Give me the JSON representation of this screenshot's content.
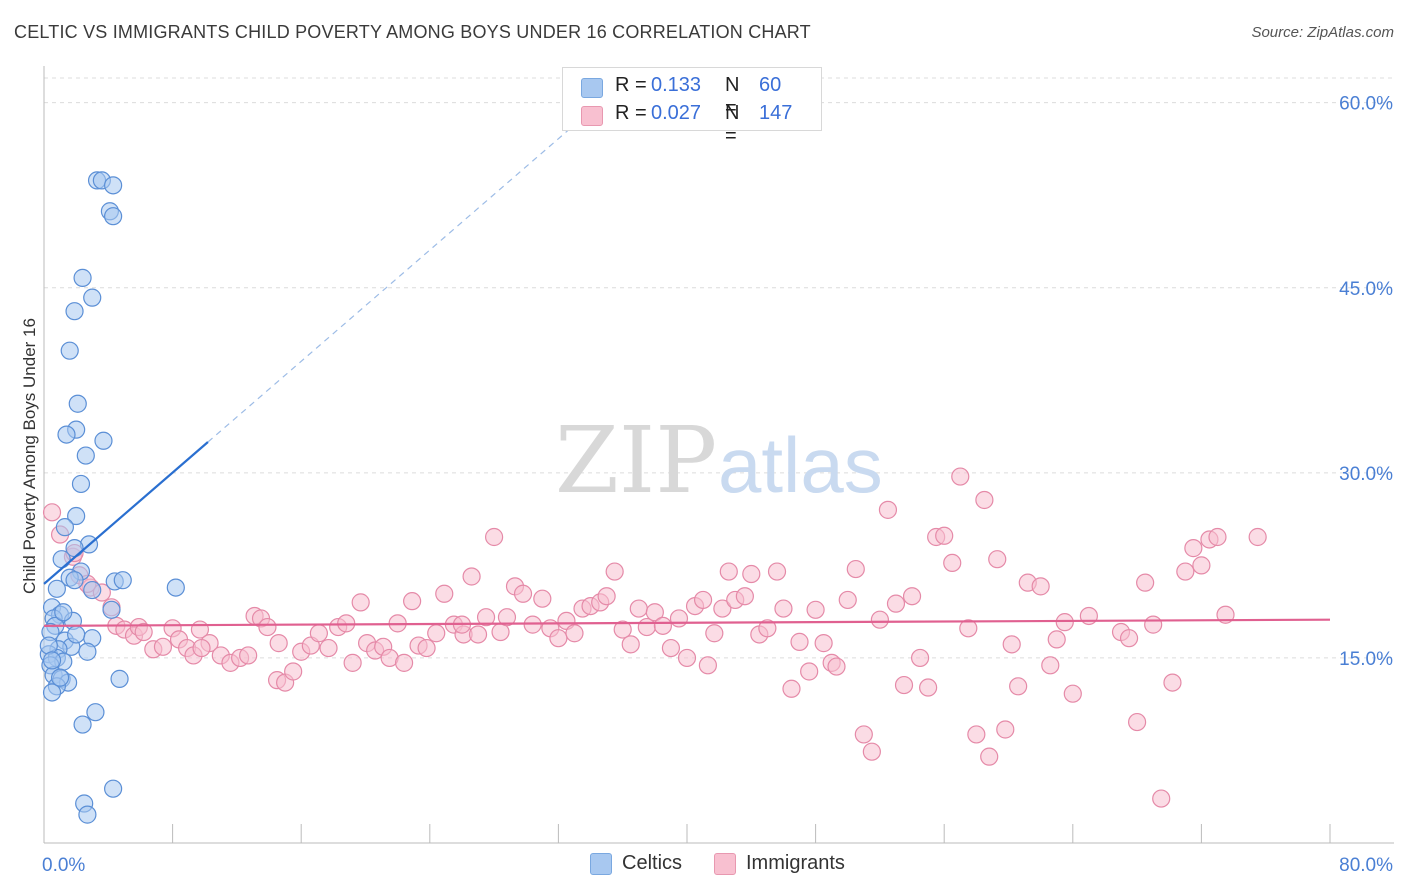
{
  "title": "CELTIC VS IMMIGRANTS CHILD POVERTY AMONG BOYS UNDER 16 CORRELATION CHART",
  "source": "Source: ZipAtlas.com",
  "watermark": {
    "zip": "ZIP",
    "atlas": "atlas"
  },
  "legend": {
    "rows": [
      {
        "r_label": "R =",
        "r_value": "0.133",
        "n_label": "N =",
        "n_value": "60",
        "color": "#a8c8f0",
        "border": "#7aa8e0"
      },
      {
        "r_label": "R =",
        "r_value": "0.027",
        "n_label": "N =",
        "n_value": "147",
        "color": "#f8c0d0",
        "border": "#e898b0"
      }
    ]
  },
  "bottom_legend": {
    "celtics": "Celtics",
    "immigrants": "Immigrants"
  },
  "chart_data": {
    "type": "scatter",
    "title": "CELTIC VS IMMIGRANTS CHILD POVERTY AMONG BOYS UNDER 16 CORRELATION CHART",
    "xlabel": "",
    "ylabel": "Child Poverty Among Boys Under 16",
    "xlim": [
      0,
      80
    ],
    "ylim": [
      0,
      62
    ],
    "x_tick_labels": [
      "0.0%",
      "80.0%"
    ],
    "y_ticks": [
      15,
      30,
      45,
      60
    ],
    "y_tick_labels": [
      "15.0%",
      "30.0%",
      "45.0%",
      "60.0%"
    ],
    "grid": true,
    "colors": {
      "celtics_fill": "#a8c8f0",
      "celtics_stroke": "#5b8fd6",
      "celtics_line": "#2a6fd0",
      "immigrants_fill": "#f8c0d0",
      "immigrants_stroke": "#e58aa8",
      "immigrants_line": "#e06090",
      "tick_label": "#4a7fd4"
    },
    "series": [
      {
        "name": "Celtics",
        "trend": {
          "x": [
            0,
            10.2
          ],
          "y": [
            21.0,
            32.5
          ],
          "dashed_to": [
            32.5,
            60.0
          ]
        },
        "points": [
          [
            3.3,
            53.7
          ],
          [
            3.6,
            53.7
          ],
          [
            4.3,
            53.3
          ],
          [
            4.1,
            51.2
          ],
          [
            4.3,
            50.8
          ],
          [
            2.4,
            45.8
          ],
          [
            3.0,
            44.2
          ],
          [
            1.9,
            43.1
          ],
          [
            1.6,
            39.9
          ],
          [
            2.1,
            35.6
          ],
          [
            2.0,
            33.5
          ],
          [
            1.4,
            33.1
          ],
          [
            3.7,
            32.6
          ],
          [
            2.6,
            31.4
          ],
          [
            2.3,
            29.1
          ],
          [
            2.0,
            26.5
          ],
          [
            1.3,
            25.6
          ],
          [
            2.8,
            24.2
          ],
          [
            1.9,
            23.9
          ],
          [
            1.1,
            23.0
          ],
          [
            2.3,
            22.0
          ],
          [
            1.6,
            21.5
          ],
          [
            1.9,
            21.3
          ],
          [
            4.4,
            21.2
          ],
          [
            4.9,
            21.3
          ],
          [
            0.8,
            20.6
          ],
          [
            3.0,
            20.5
          ],
          [
            8.2,
            20.7
          ],
          [
            0.5,
            19.1
          ],
          [
            4.2,
            18.9
          ],
          [
            1.0,
            18.5
          ],
          [
            0.6,
            18.2
          ],
          [
            1.8,
            18.0
          ],
          [
            0.7,
            17.6
          ],
          [
            0.4,
            17.1
          ],
          [
            3.0,
            16.6
          ],
          [
            1.3,
            16.4
          ],
          [
            1.7,
            15.9
          ],
          [
            0.9,
            15.7
          ],
          [
            2.7,
            15.5
          ],
          [
            0.3,
            15.3
          ],
          [
            0.8,
            15.0
          ],
          [
            1.2,
            14.7
          ],
          [
            0.4,
            14.4
          ],
          [
            0.6,
            13.6
          ],
          [
            1.1,
            13.3
          ],
          [
            1.5,
            13.0
          ],
          [
            4.7,
            13.3
          ],
          [
            0.8,
            12.7
          ],
          [
            0.5,
            12.2
          ],
          [
            3.2,
            10.6
          ],
          [
            2.4,
            9.6
          ],
          [
            4.3,
            4.4
          ],
          [
            2.5,
            3.2
          ],
          [
            2.7,
            2.3
          ],
          [
            1.0,
            13.4
          ],
          [
            0.3,
            16.0
          ],
          [
            0.5,
            14.8
          ],
          [
            1.2,
            18.7
          ],
          [
            2.0,
            16.9
          ]
        ]
      },
      {
        "name": "Immigrants",
        "trend": {
          "x": [
            0,
            80
          ],
          "y": [
            17.6,
            18.1
          ]
        },
        "points": [
          [
            0.5,
            26.8
          ],
          [
            1.0,
            25.0
          ],
          [
            1.8,
            23.2
          ],
          [
            2.2,
            21.7
          ],
          [
            2.9,
            20.7
          ],
          [
            3.6,
            20.3
          ],
          [
            4.2,
            19.1
          ],
          [
            1.9,
            23.5
          ],
          [
            2.7,
            21.0
          ],
          [
            4.5,
            17.6
          ],
          [
            5.0,
            17.3
          ],
          [
            5.6,
            16.8
          ],
          [
            5.9,
            17.5
          ],
          [
            6.2,
            17.1
          ],
          [
            6.8,
            15.7
          ],
          [
            7.4,
            15.9
          ],
          [
            8.0,
            17.4
          ],
          [
            8.4,
            16.5
          ],
          [
            8.9,
            15.8
          ],
          [
            9.3,
            15.2
          ],
          [
            9.7,
            17.3
          ],
          [
            10.3,
            16.2
          ],
          [
            11.0,
            15.2
          ],
          [
            11.6,
            14.6
          ],
          [
            12.2,
            15.0
          ],
          [
            12.7,
            15.2
          ],
          [
            13.1,
            18.4
          ],
          [
            13.5,
            18.2
          ],
          [
            13.9,
            17.5
          ],
          [
            14.5,
            13.2
          ],
          [
            15.0,
            13.0
          ],
          [
            15.5,
            13.9
          ],
          [
            16.0,
            15.5
          ],
          [
            16.6,
            16.0
          ],
          [
            17.1,
            17.0
          ],
          [
            17.7,
            15.8
          ],
          [
            18.3,
            17.5
          ],
          [
            18.8,
            17.8
          ],
          [
            19.2,
            14.6
          ],
          [
            19.7,
            19.5
          ],
          [
            20.1,
            16.2
          ],
          [
            20.6,
            15.6
          ],
          [
            21.1,
            15.9
          ],
          [
            21.5,
            15.0
          ],
          [
            22.0,
            17.8
          ],
          [
            22.4,
            14.6
          ],
          [
            22.9,
            19.6
          ],
          [
            23.3,
            16.0
          ],
          [
            23.8,
            15.8
          ],
          [
            24.4,
            17.0
          ],
          [
            24.9,
            20.2
          ],
          [
            25.5,
            17.7
          ],
          [
            26.1,
            16.9
          ],
          [
            26.6,
            21.6
          ],
          [
            27.0,
            16.9
          ],
          [
            27.5,
            18.3
          ],
          [
            28.0,
            24.8
          ],
          [
            28.4,
            17.1
          ],
          [
            28.8,
            18.3
          ],
          [
            29.3,
            20.8
          ],
          [
            29.8,
            20.2
          ],
          [
            30.4,
            17.7
          ],
          [
            31.0,
            19.8
          ],
          [
            31.5,
            17.4
          ],
          [
            32.0,
            16.6
          ],
          [
            32.5,
            18.0
          ],
          [
            33.0,
            17.0
          ],
          [
            33.5,
            19.0
          ],
          [
            34.0,
            19.2
          ],
          [
            34.6,
            19.5
          ],
          [
            35.0,
            20.0
          ],
          [
            35.5,
            22.0
          ],
          [
            36.0,
            17.3
          ],
          [
            36.5,
            16.1
          ],
          [
            37.0,
            19.0
          ],
          [
            37.5,
            17.5
          ],
          [
            38.0,
            18.7
          ],
          [
            38.5,
            17.6
          ],
          [
            39.0,
            15.8
          ],
          [
            39.5,
            18.2
          ],
          [
            40.0,
            15.0
          ],
          [
            40.5,
            19.2
          ],
          [
            41.0,
            19.7
          ],
          [
            41.3,
            14.4
          ],
          [
            41.7,
            17.0
          ],
          [
            42.2,
            19.0
          ],
          [
            42.6,
            22.0
          ],
          [
            43.0,
            19.7
          ],
          [
            43.6,
            20.0
          ],
          [
            44.0,
            21.8
          ],
          [
            44.5,
            16.9
          ],
          [
            45.0,
            17.4
          ],
          [
            45.6,
            22.0
          ],
          [
            46.0,
            19.0
          ],
          [
            46.5,
            12.5
          ],
          [
            47.0,
            16.3
          ],
          [
            47.6,
            13.9
          ],
          [
            48.0,
            18.9
          ],
          [
            48.5,
            16.2
          ],
          [
            49.0,
            14.6
          ],
          [
            49.3,
            14.3
          ],
          [
            50.0,
            19.7
          ],
          [
            50.5,
            22.2
          ],
          [
            51.0,
            8.8
          ],
          [
            51.5,
            7.4
          ],
          [
            52.0,
            18.1
          ],
          [
            52.5,
            27.0
          ],
          [
            53.0,
            19.4
          ],
          [
            53.5,
            12.8
          ],
          [
            54.0,
            20.0
          ],
          [
            54.5,
            15.0
          ],
          [
            55.0,
            12.6
          ],
          [
            55.5,
            24.8
          ],
          [
            56.0,
            24.9
          ],
          [
            56.5,
            22.7
          ],
          [
            57.0,
            29.7
          ],
          [
            57.5,
            17.4
          ],
          [
            58.0,
            8.8
          ],
          [
            58.5,
            27.8
          ],
          [
            58.8,
            7.0
          ],
          [
            59.3,
            23.0
          ],
          [
            59.8,
            9.2
          ],
          [
            60.2,
            16.1
          ],
          [
            60.6,
            12.7
          ],
          [
            61.2,
            21.1
          ],
          [
            62.0,
            20.8
          ],
          [
            62.6,
            14.4
          ],
          [
            63.0,
            16.5
          ],
          [
            63.5,
            17.9
          ],
          [
            64.0,
            12.1
          ],
          [
            65.0,
            18.4
          ],
          [
            67.0,
            17.1
          ],
          [
            67.5,
            16.6
          ],
          [
            68.0,
            9.8
          ],
          [
            68.5,
            21.1
          ],
          [
            69.0,
            17.7
          ],
          [
            69.5,
            3.6
          ],
          [
            70.2,
            13.0
          ],
          [
            71.0,
            22.0
          ],
          [
            71.5,
            23.9
          ],
          [
            72.0,
            22.5
          ],
          [
            72.5,
            24.6
          ],
          [
            73.0,
            24.8
          ],
          [
            73.5,
            18.5
          ],
          [
            75.5,
            24.8
          ],
          [
            14.6,
            16.2
          ],
          [
            9.8,
            15.8
          ],
          [
            26.0,
            17.7
          ]
        ]
      }
    ]
  }
}
